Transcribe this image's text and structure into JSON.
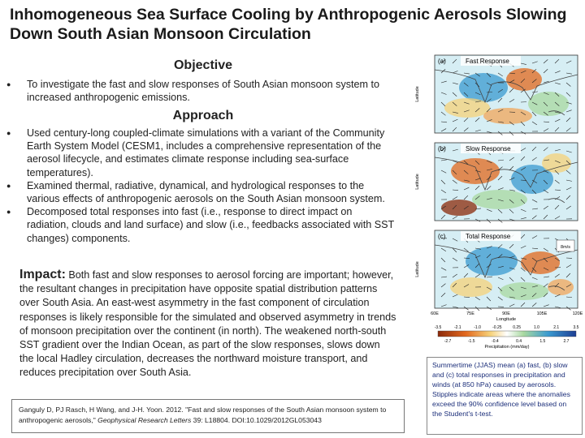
{
  "header": {
    "title": "Inhomogeneous Sea Surface Cooling by Anthropogenic Aerosols Slowing Down South Asian Monsoon Circulation"
  },
  "objective": {
    "heading": "Objective",
    "bullets": [
      "To investigate the fast and slow responses of South Asian monsoon system to increased anthropogenic emissions."
    ]
  },
  "approach": {
    "heading": "Approach",
    "bullets": [
      "Used century-long coupled-climate simulations with a variant of the Community Earth System Model (CESM1, includes a comprehensive representation of the aerosol lifecycle, and estimates climate response including sea-surface temperatures).",
      "Examined thermal, radiative, dynamical, and hydrological responses to the various effects of anthropogenic aerosols on the South Asian monsoon system.",
      "Decomposed total responses into fast (i.e., response to direct impact on radiation, clouds and land surface) and slow (i.e., feedbacks associated with SST changes) components."
    ]
  },
  "impact": {
    "label": "Impact:",
    "text": "Both fast and slow responses to aerosol forcing are important; however, the resultant changes in precipitation have opposite spatial distribution patterns over South Asia. An east-west asymmetry in the fast component of circulation responses is likely responsible for the simulated and observed asymmetry in trends of monsoon precipitation over the continent (in north). The weakened north-south SST gradient over the Indian Ocean, as part of the slow responses, slows down the local Hadley circulation, decreases the northward moisture transport, and reduces precipitation over South Asia."
  },
  "citation": {
    "before": "Ganguly D, PJ Rasch, H Wang, and J-H. Yoon. 2012. \"Fast and slow responses of the South Asian monsoon system to anthropogenic aerosols,\" ",
    "journal": "Geophysical Research Letters",
    "after": " 39: L18804. DOI:10.1029/2012GL053043"
  },
  "figure": {
    "panels": [
      {
        "label": "(a)",
        "title": "Fast Response"
      },
      {
        "label": "(b)",
        "title": "Slow Response"
      },
      {
        "label": "(c)",
        "title": "Total Response"
      }
    ],
    "lat_labels": [
      "40N",
      "30N",
      "20N",
      "10N",
      "EQ",
      "10S",
      "20S"
    ],
    "lat_title": "Latitude",
    "lon_labels": [
      "60E",
      "75E",
      "90E",
      "105E",
      "120E"
    ],
    "lon_title": "Longitude",
    "vector_label": "8m/s",
    "colorbar_top": [
      "-3.5",
      "-2.1",
      "-1.0",
      "-0.25",
      "0.25",
      "1.0",
      "2.1",
      "3.5"
    ],
    "colorbar_bottom": [
      "-2.7",
      "-1.5",
      "-0.4",
      "0.4",
      "1.5",
      "2.7"
    ],
    "colorbar_title": "Precipitation (mm/day)"
  },
  "caption": "Summertime (JJAS) mean (a) fast, (b) slow and (c) total responses in precipitation and winds (at 850 hPa) caused by aerosols. Stipples indicate areas where the anomalies exceed the 90% confidence level based on the Student's t-test."
}
